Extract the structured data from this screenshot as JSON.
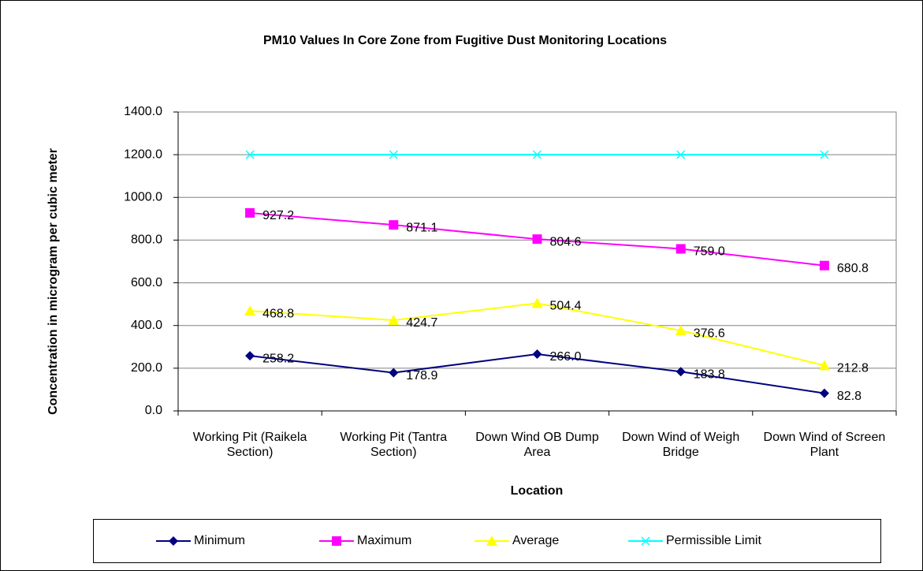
{
  "chart_data": {
    "type": "line",
    "title": "PM10 Values In Core Zone from Fugitive Dust Monitoring Locations",
    "x_label": "Location",
    "y_label": "Concentration in microgram per cubic meter",
    "categories": [
      "Working Pit (Raikela Section)",
      "Working Pit (Tantra Section)",
      "Down Wind OB Dump Area",
      "Down Wind of Weigh Bridge",
      "Down Wind of Screen Plant"
    ],
    "ylim": [
      0,
      1400
    ],
    "yticks": [
      {
        "value": 0,
        "label": "0.0"
      },
      {
        "value": 200,
        "label": "200.0"
      },
      {
        "value": 400,
        "label": "400.0"
      },
      {
        "value": 600,
        "label": "600.0"
      },
      {
        "value": 800,
        "label": "800.0"
      },
      {
        "value": 1000,
        "label": "1000.0"
      },
      {
        "value": 1200,
        "label": "1200.0"
      },
      {
        "value": 1400,
        "label": "1400.0"
      }
    ],
    "grid": true,
    "legend": "bottom",
    "series": [
      {
        "name": "Minimum",
        "color": "#000080",
        "marker": "diamond",
        "values": [
          258.2,
          178.9,
          266.0,
          183.8,
          82.8
        ],
        "value_labels": [
          "258.2",
          "178.9",
          "266.0",
          "183.8",
          "82.8"
        ]
      },
      {
        "name": "Maximum",
        "color": "#ff00ff",
        "marker": "square",
        "values": [
          927.2,
          871.1,
          804.6,
          759.0,
          680.8
        ],
        "value_labels": [
          "927.2",
          "871.1",
          "804.6",
          "759.0",
          "680.8"
        ]
      },
      {
        "name": "Average",
        "color": "#ffff00",
        "marker": "triangle",
        "values": [
          468.8,
          424.7,
          504.4,
          376.6,
          212.8
        ],
        "value_labels": [
          "468.8",
          "424.7",
          "504.4",
          "376.6",
          "212.8"
        ]
      },
      {
        "name": "Permissible Limit",
        "color": "#00ffff",
        "marker": "x",
        "values": [
          1200,
          1200,
          1200,
          1200,
          1200
        ]
      }
    ]
  }
}
